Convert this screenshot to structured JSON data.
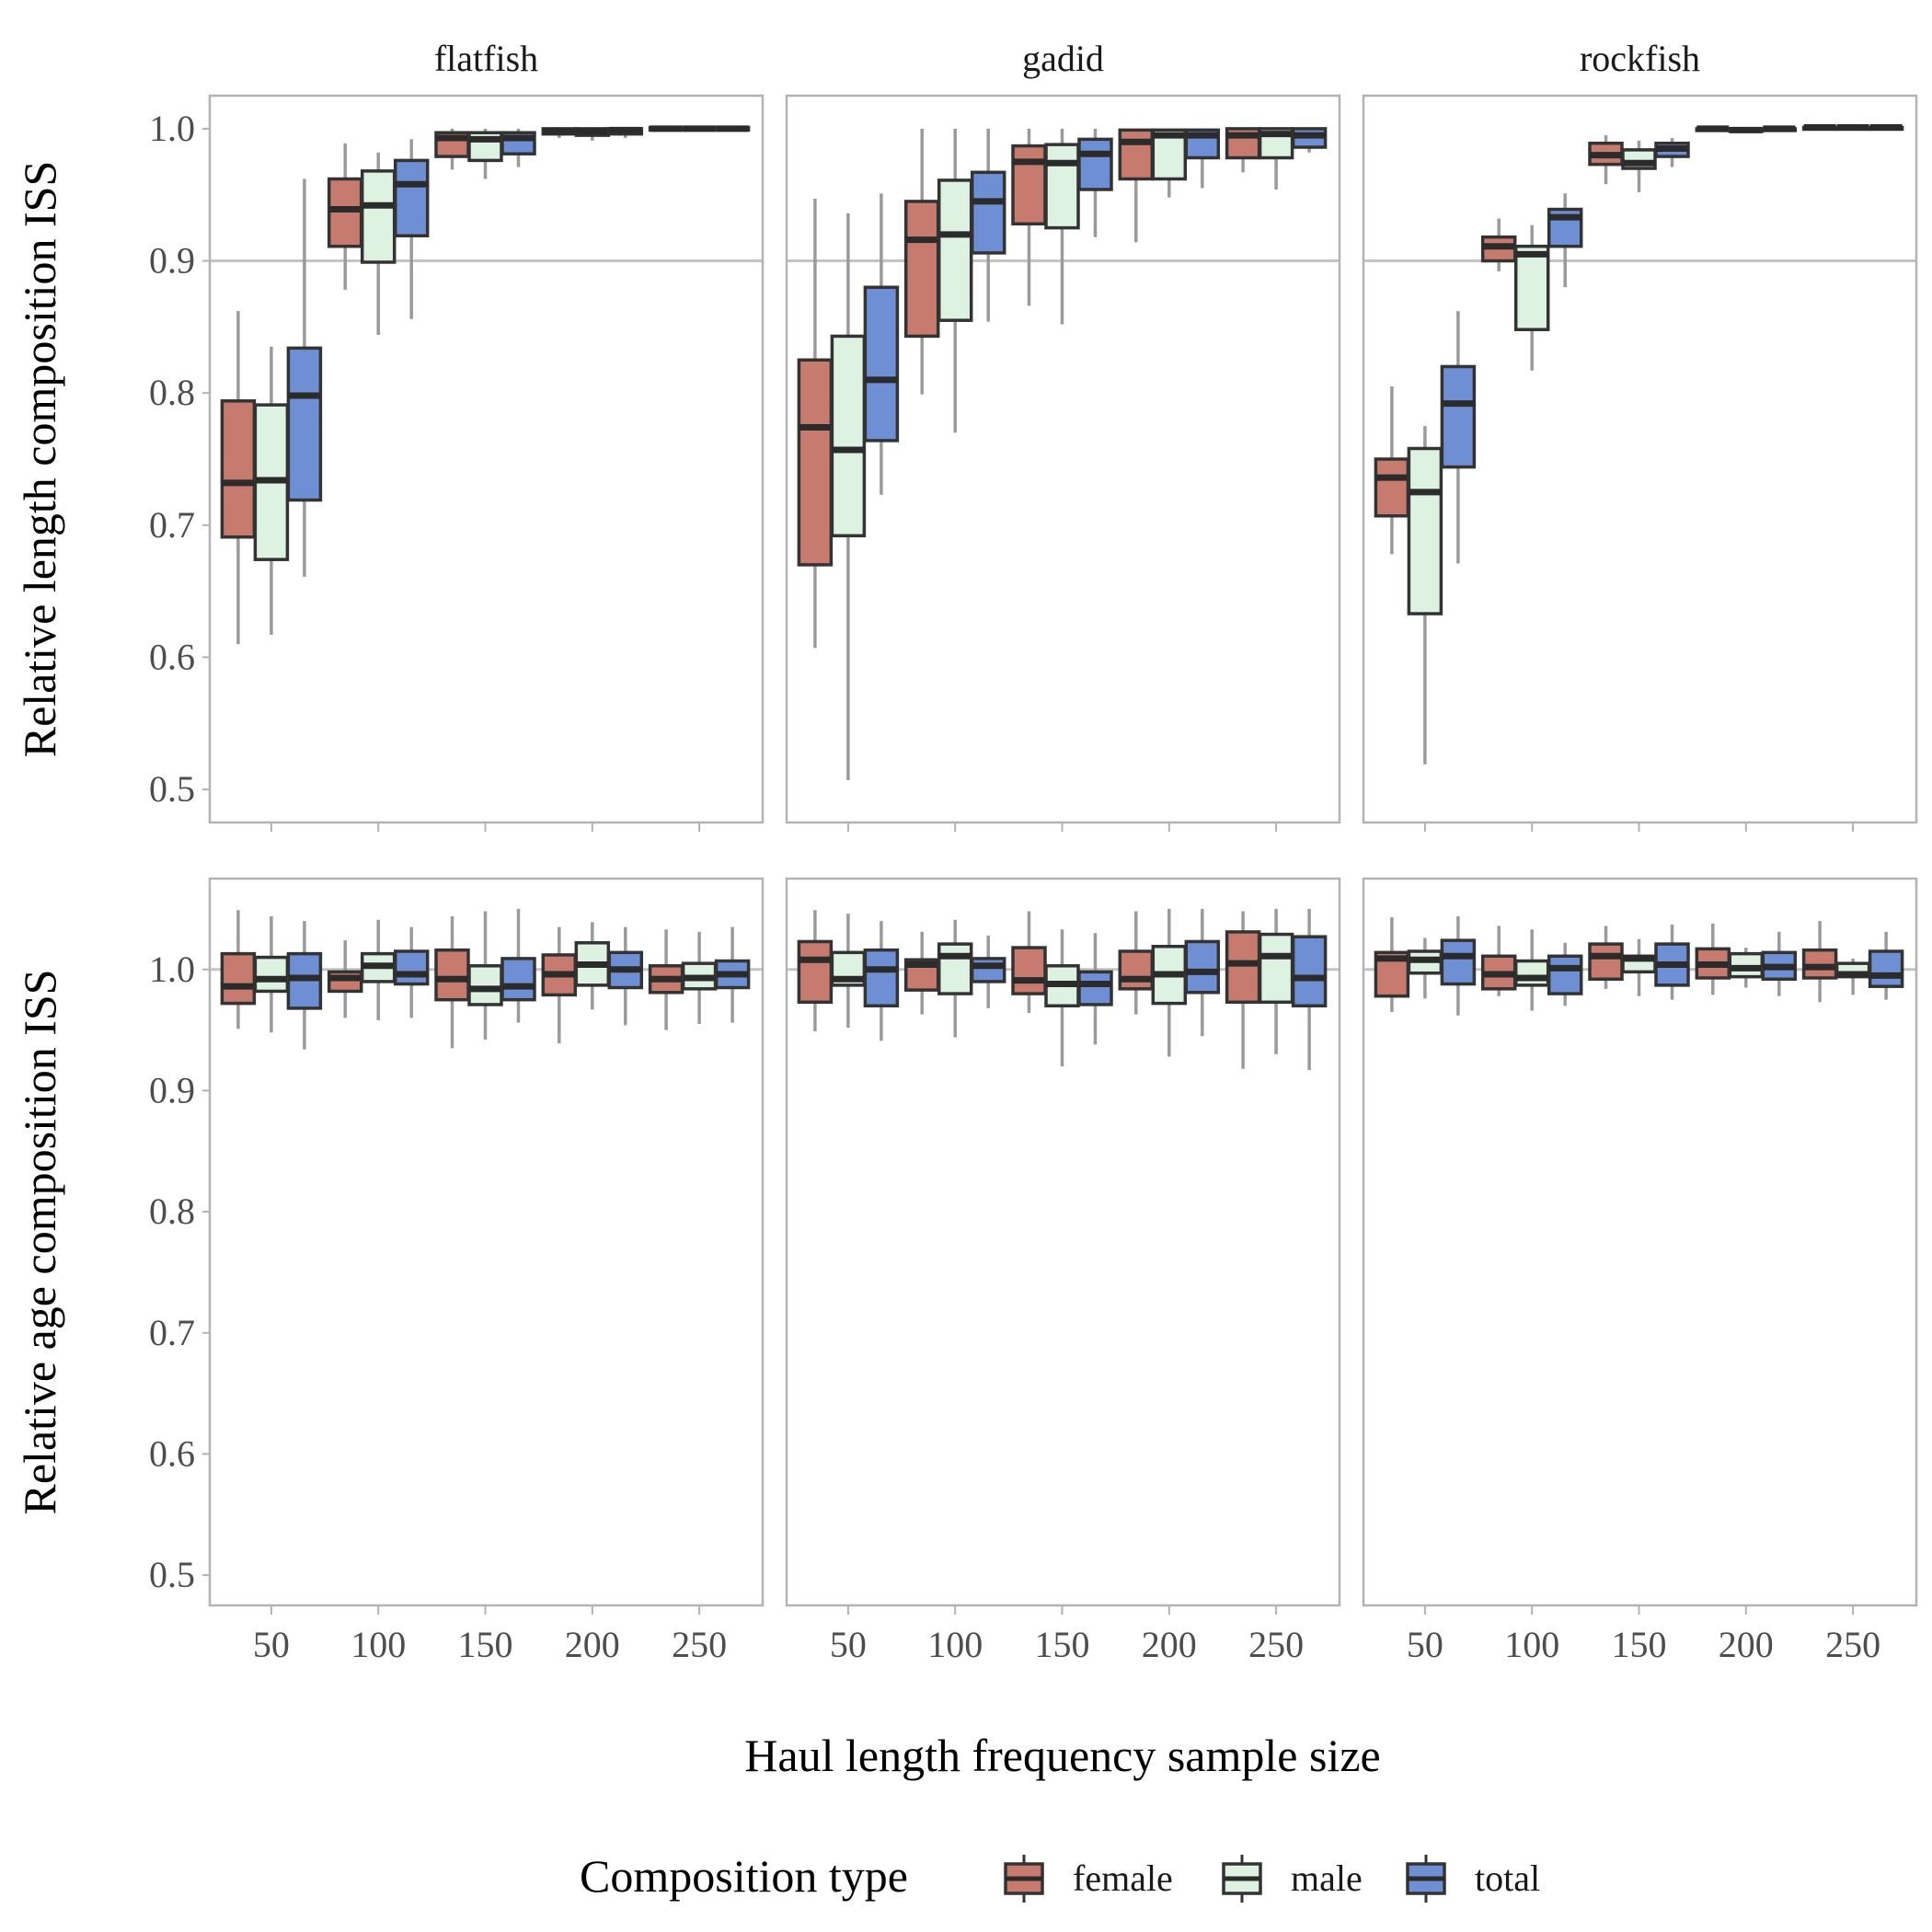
{
  "chart_data": {
    "type": "boxplot",
    "facet_columns": [
      "flatfish",
      "gadid",
      "rockfish"
    ],
    "x_categories": [
      50,
      100,
      150,
      200,
      250
    ],
    "xlabel": "Haul length frequency sample size",
    "legend": {
      "title": "Composition type",
      "position": "bottom",
      "entries": [
        {
          "name": "female",
          "color": "#c67b6e"
        },
        {
          "name": "male",
          "color": "#ddf2e0"
        },
        {
          "name": "total",
          "color": "#6f8fd4"
        }
      ]
    },
    "reference_line": 1.0,
    "box_stat_order": [
      "lower_whisker",
      "q1",
      "median",
      "q3",
      "upper_whisker"
    ],
    "rows": [
      {
        "ylabel": "Relative length composition ISS",
        "ylim": [
          0.475,
          1.025
        ],
        "yticks": [
          0.5,
          0.6,
          0.7,
          0.8,
          0.9,
          1.0
        ],
        "reference_line": 0.9,
        "panels": [
          {
            "facet": "flatfish",
            "boxes": {
              "50": {
                "female": [
                  0.61,
                  0.691,
                  0.732,
                  0.794,
                  0.862
                ],
                "male": [
                  0.617,
                  0.674,
                  0.734,
                  0.791,
                  0.835
                ],
                "total": [
                  0.661,
                  0.719,
                  0.798,
                  0.834,
                  0.962
                ]
              },
              "100": {
                "female": [
                  0.878,
                  0.911,
                  0.939,
                  0.962,
                  0.989
                ],
                "male": [
                  0.844,
                  0.899,
                  0.942,
                  0.968,
                  0.982
                ],
                "total": [
                  0.856,
                  0.919,
                  0.958,
                  0.976,
                  0.992
                ]
              },
              "150": {
                "female": [
                  0.969,
                  0.979,
                  0.993,
                  0.997,
                  1.0
                ],
                "male": [
                  0.962,
                  0.976,
                  0.992,
                  0.997,
                  1.0
                ],
                "total": [
                  0.971,
                  0.981,
                  0.993,
                  0.997,
                  1.0
                ]
              },
              "200": {
                "female": [
                  0.993,
                  0.996,
                  0.998,
                  1.0,
                  1.001
                ],
                "male": [
                  0.991,
                  0.995,
                  0.998,
                  1.0,
                  1.001
                ],
                "total": [
                  0.993,
                  0.996,
                  0.999,
                  1.0,
                  1.001
                ]
              },
              "250": {
                "female": [
                  0.998,
                  0.999,
                  1.0,
                  1.001,
                  1.002
                ],
                "male": [
                  0.998,
                  0.999,
                  1.0,
                  1.001,
                  1.002
                ],
                "total": [
                  0.998,
                  0.999,
                  1.0,
                  1.001,
                  1.002
                ]
              }
            }
          },
          {
            "facet": "gadid",
            "boxes": {
              "50": {
                "female": [
                  0.607,
                  0.67,
                  0.774,
                  0.825,
                  0.947
                ],
                "male": [
                  0.507,
                  0.692,
                  0.757,
                  0.843,
                  0.936
                ],
                "total": [
                  0.723,
                  0.764,
                  0.81,
                  0.88,
                  0.951
                ]
              },
              "100": {
                "female": [
                  0.799,
                  0.843,
                  0.916,
                  0.945,
                  1.0
                ],
                "male": [
                  0.77,
                  0.855,
                  0.92,
                  0.961,
                  1.0
                ],
                "total": [
                  0.854,
                  0.906,
                  0.945,
                  0.967,
                  1.0
                ]
              },
              "150": {
                "female": [
                  0.866,
                  0.928,
                  0.975,
                  0.987,
                  1.0
                ],
                "male": [
                  0.852,
                  0.925,
                  0.974,
                  0.988,
                  1.0
                ],
                "total": [
                  0.918,
                  0.954,
                  0.981,
                  0.992,
                  1.0
                ]
              },
              "200": {
                "female": [
                  0.914,
                  0.962,
                  0.99,
                  0.999,
                  1.0
                ],
                "male": [
                  0.948,
                  0.962,
                  0.995,
                  0.999,
                  1.0
                ],
                "total": [
                  0.955,
                  0.978,
                  0.995,
                  0.999,
                  1.0
                ]
              },
              "250": {
                "female": [
                  0.967,
                  0.978,
                  0.995,
                  1.0,
                  1.0
                ],
                "male": [
                  0.954,
                  0.978,
                  0.996,
                  1.0,
                  1.0
                ],
                "total": [
                  0.982,
                  0.986,
                  0.995,
                  1.0,
                  1.0
                ]
              }
            }
          },
          {
            "facet": "rockfish",
            "boxes": {
              "50": {
                "female": [
                  0.678,
                  0.707,
                  0.736,
                  0.75,
                  0.805
                ],
                "male": [
                  0.519,
                  0.633,
                  0.725,
                  0.758,
                  0.775
                ],
                "total": [
                  0.671,
                  0.744,
                  0.792,
                  0.82,
                  0.862
                ]
              },
              "100": {
                "female": [
                  0.892,
                  0.9,
                  0.911,
                  0.918,
                  0.932
                ],
                "male": [
                  0.817,
                  0.848,
                  0.905,
                  0.911,
                  0.927
                ],
                "total": [
                  0.88,
                  0.911,
                  0.933,
                  0.939,
                  0.951
                ]
              },
              "150": {
                "female": [
                  0.958,
                  0.973,
                  0.98,
                  0.989,
                  0.995
                ],
                "male": [
                  0.952,
                  0.97,
                  0.974,
                  0.984,
                  0.991
                ],
                "total": [
                  0.971,
                  0.979,
                  0.985,
                  0.989,
                  0.993
                ]
              },
              "200": {
                "female": [
                  0.998,
                  0.999,
                  1.0,
                  1.0,
                  1.001
                ],
                "male": [
                  0.997,
                  0.998,
                  0.999,
                  1.0,
                  1.001
                ],
                "total": [
                  0.998,
                  0.999,
                  1.0,
                  1.0,
                  1.001
                ]
              },
              "250": {
                "female": [
                  0.999,
                  1.0,
                  1.001,
                  1.001,
                  1.002
                ],
                "male": [
                  0.999,
                  1.0,
                  1.001,
                  1.001,
                  1.002
                ],
                "total": [
                  0.999,
                  1.0,
                  1.001,
                  1.001,
                  1.002
                ]
              }
            }
          }
        ]
      },
      {
        "ylabel": "Relative age composition ISS",
        "ylim": [
          0.475,
          1.075
        ],
        "yticks": [
          0.5,
          0.6,
          0.7,
          0.8,
          0.9,
          1.0
        ],
        "reference_line": 1.0,
        "panels": [
          {
            "facet": "flatfish",
            "boxes": {
              "50": {
                "female": [
                  0.951,
                  0.972,
                  0.986,
                  1.013,
                  1.049
                ],
                "male": [
                  0.948,
                  0.982,
                  0.992,
                  1.01,
                  1.044
                ],
                "total": [
                  0.934,
                  0.968,
                  0.993,
                  1.013,
                  1.04
                ]
              },
              "100": {
                "female": [
                  0.96,
                  0.982,
                  0.993,
                  0.998,
                  1.024
                ],
                "male": [
                  0.958,
                  0.99,
                  1.003,
                  1.013,
                  1.041
                ],
                "total": [
                  0.96,
                  0.988,
                  0.996,
                  1.015,
                  1.035
                ]
              },
              "150": {
                "female": [
                  0.935,
                  0.975,
                  0.992,
                  1.016,
                  1.044
                ],
                "male": [
                  0.942,
                  0.971,
                  0.984,
                  1.003,
                  1.048
                ],
                "total": [
                  0.956,
                  0.975,
                  0.986,
                  1.009,
                  1.05
                ]
              },
              "200": {
                "female": [
                  0.939,
                  0.979,
                  0.996,
                  1.012,
                  1.035
                ],
                "male": [
                  0.967,
                  0.987,
                  1.004,
                  1.022,
                  1.039
                ],
                "total": [
                  0.954,
                  0.985,
                  1.0,
                  1.014,
                  1.035
                ]
              },
              "250": {
                "female": [
                  0.95,
                  0.981,
                  0.992,
                  1.003,
                  1.033
                ],
                "male": [
                  0.955,
                  0.984,
                  0.993,
                  1.005,
                  1.031
                ],
                "total": [
                  0.956,
                  0.985,
                  0.996,
                  1.007,
                  1.035
                ]
              }
            }
          },
          {
            "facet": "gadid",
            "boxes": {
              "50": {
                "female": [
                  0.949,
                  0.973,
                  1.008,
                  1.023,
                  1.049
                ],
                "male": [
                  0.952,
                  0.987,
                  0.992,
                  1.014,
                  1.046
                ],
                "total": [
                  0.941,
                  0.97,
                  1.0,
                  1.016,
                  1.04
                ]
              },
              "100": {
                "female": [
                  0.963,
                  0.983,
                  1.004,
                  1.008,
                  1.031
                ],
                "male": [
                  0.944,
                  0.98,
                  1.011,
                  1.021,
                  1.041
                ],
                "total": [
                  0.968,
                  0.99,
                  1.003,
                  1.009,
                  1.028
                ]
              },
              "150": {
                "female": [
                  0.964,
                  0.98,
                  0.991,
                  1.018,
                  1.048
                ],
                "male": [
                  0.92,
                  0.97,
                  0.988,
                  1.003,
                  1.033
                ],
                "total": [
                  0.938,
                  0.971,
                  0.988,
                  0.998,
                  1.03
                ]
              },
              "200": {
                "female": [
                  0.963,
                  0.984,
                  0.992,
                  1.015,
                  1.048
                ],
                "male": [
                  0.928,
                  0.972,
                  0.996,
                  1.019,
                  1.05
                ],
                "total": [
                  0.945,
                  0.981,
                  0.998,
                  1.023,
                  1.05
                ]
              },
              "250": {
                "female": [
                  0.918,
                  0.973,
                  1.005,
                  1.031,
                  1.048
                ],
                "male": [
                  0.93,
                  0.973,
                  1.011,
                  1.029,
                  1.05
                ],
                "total": [
                  0.917,
                  0.97,
                  0.993,
                  1.027,
                  1.05
                ]
              }
            }
          },
          {
            "facet": "rockfish",
            "boxes": {
              "50": {
                "female": [
                  0.965,
                  0.978,
                  1.009,
                  1.014,
                  1.043
                ],
                "male": [
                  0.976,
                  0.997,
                  1.008,
                  1.015,
                  1.026
                ],
                "total": [
                  0.962,
                  0.988,
                  1.011,
                  1.024,
                  1.044
                ]
              },
              "100": {
                "female": [
                  0.978,
                  0.984,
                  0.996,
                  1.011,
                  1.036
                ],
                "male": [
                  0.966,
                  0.987,
                  0.993,
                  1.007,
                  1.033
                ],
                "total": [
                  0.97,
                  0.98,
                  1.001,
                  1.011,
                  1.022
                ]
              },
              "150": {
                "female": [
                  0.984,
                  0.992,
                  1.011,
                  1.021,
                  1.036
                ],
                "male": [
                  0.978,
                  0.998,
                  1.009,
                  1.011,
                  1.025
                ],
                "total": [
                  0.975,
                  0.987,
                  1.004,
                  1.021,
                  1.037
                ]
              },
              "200": {
                "female": [
                  0.979,
                  0.993,
                  1.004,
                  1.017,
                  1.038
                ],
                "male": [
                  0.985,
                  0.994,
                  1.001,
                  1.013,
                  1.018
                ],
                "total": [
                  0.978,
                  0.992,
                  1.002,
                  1.014,
                  1.031
                ]
              },
              "250": {
                "female": [
                  0.973,
                  0.993,
                  1.002,
                  1.016,
                  1.04
                ],
                "male": [
                  0.979,
                  0.994,
                  0.996,
                  1.005,
                  1.009
                ],
                "total": [
                  0.975,
                  0.986,
                  0.995,
                  1.015,
                  1.031
                ]
              }
            }
          }
        ]
      }
    ]
  }
}
